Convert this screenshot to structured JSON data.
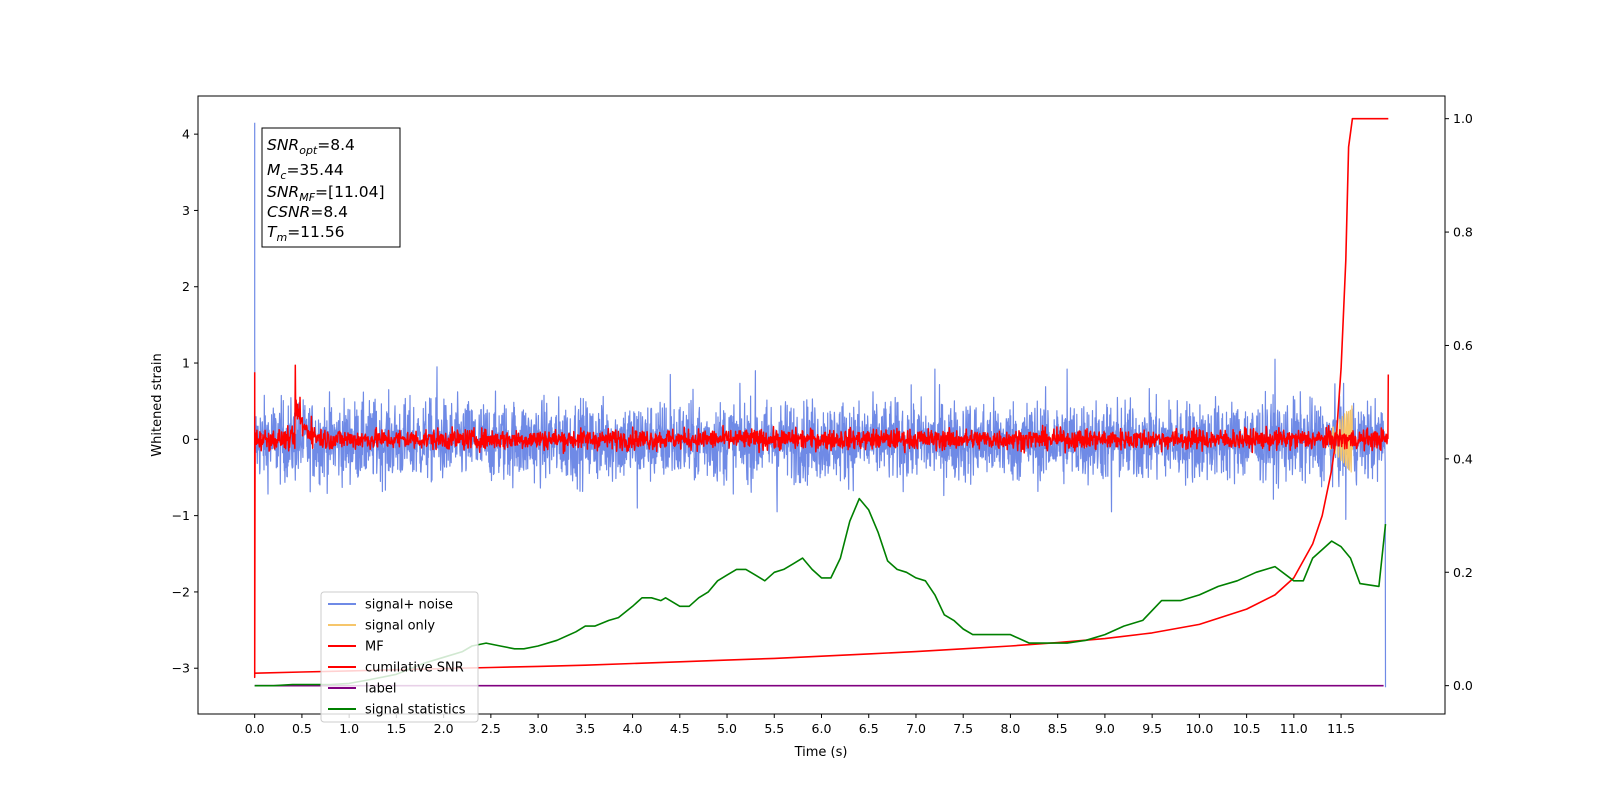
{
  "chart_data": {
    "type": "line",
    "xlabel": "Time (s)",
    "ylabel_left": "Whitened strain",
    "ylabel_right": "",
    "xlim": [
      -0.6,
      12.6
    ],
    "ylim_left": [
      -3.6,
      4.5
    ],
    "ylim_right": [
      -0.05,
      1.04
    ],
    "x_ticks": [
      0.0,
      0.5,
      1.0,
      1.5,
      2.0,
      2.5,
      3.0,
      3.5,
      4.0,
      4.5,
      5.0,
      5.5,
      6.0,
      6.5,
      7.0,
      7.5,
      8.0,
      8.5,
      9.0,
      9.5,
      10.0,
      10.5,
      11.0,
      11.5
    ],
    "x_tick_labels": [
      "0.0",
      "0.5",
      "1.0",
      "1.5",
      "2.0",
      "2.5",
      "3.0",
      "3.5",
      "4.0",
      "4.5",
      "5.0",
      "5.5",
      "6.0",
      "6.5",
      "7.0",
      "7.5",
      "8.0",
      "8.5",
      "9.0",
      "9.5",
      "10.0",
      "10.5",
      "11.0",
      "11.5"
    ],
    "y_left_ticks": [
      -3,
      -2,
      -1,
      0,
      1,
      2,
      3,
      4
    ],
    "y_left_tick_labels": [
      "−3",
      "−2",
      "−1",
      "0",
      "1",
      "2",
      "3",
      "4"
    ],
    "y_right_ticks": [
      0.0,
      0.2,
      0.4,
      0.6,
      0.8,
      1.0
    ],
    "y_right_tick_labels": [
      "0.0",
      "0.2",
      "0.4",
      "0.6",
      "0.8",
      "1.0"
    ],
    "legend_position": "lower-left",
    "grid": false,
    "info_box": {
      "snr_opt_main": "SNR",
      "snr_opt_sub": "opt",
      "snr_opt_val": "=8.4",
      "mc_main": "M",
      "mc_sub": "c",
      "mc_val": "=35.44",
      "snr_mf_main": "SNR",
      "snr_mf_sub": "MF",
      "snr_mf_val": "=[11.04]",
      "csnr_main": "CSNR",
      "csnr_val": "=8.4",
      "tm_main": "T",
      "tm_sub": "m",
      "tm_val": "=11.56"
    },
    "series": [
      {
        "name": "signal+ noise",
        "color": "#6f8ae6",
        "axis": "left",
        "kind": "noise",
        "x_range": [
          0.0,
          11.97
        ],
        "band": [
          -0.5,
          0.45
        ],
        "peaks": [
          [
            0.0,
            4.15
          ],
          [
            0.0,
            1.2
          ],
          [
            1.93,
            0.95
          ],
          [
            4.05,
            -0.9
          ],
          [
            4.4,
            0.85
          ],
          [
            5.3,
            0.9
          ],
          [
            5.53,
            -0.95
          ],
          [
            7.2,
            0.92
          ],
          [
            8.6,
            0.92
          ],
          [
            9.07,
            -0.95
          ],
          [
            10.8,
            1.05
          ],
          [
            11.55,
            -1.05
          ],
          [
            11.97,
            -3.25
          ]
        ]
      },
      {
        "name": "signal only",
        "color": "#f6c66b",
        "axis": "left",
        "kind": "chirp",
        "x_range": [
          11.3,
          11.62
        ],
        "amplitude": 0.45
      },
      {
        "name": "MF",
        "color": "#ff0000",
        "axis": "left",
        "kind": "mf",
        "x_range": [
          0.0,
          12.0
        ],
        "band": [
          -0.12,
          0.12
        ],
        "peaks": [
          [
            0.0,
            0.88
          ],
          [
            0.0,
            -3.12
          ],
          [
            0.43,
            0.97
          ],
          [
            0.48,
            0.55
          ],
          [
            0.6,
            0.3
          ],
          [
            12.0,
            0.85
          ]
        ]
      },
      {
        "name": "cumilative SNR",
        "color": "#ff0000",
        "axis": "right",
        "kind": "line",
        "x": [
          0.0,
          0.5,
          1.0,
          1.5,
          2.0,
          2.5,
          3.0,
          3.5,
          4.0,
          4.5,
          5.0,
          5.5,
          6.0,
          6.5,
          7.0,
          7.5,
          8.0,
          8.5,
          9.0,
          9.5,
          10.0,
          10.5,
          10.8,
          11.0,
          11.2,
          11.3,
          11.4,
          11.45,
          11.5,
          11.55,
          11.58,
          11.62,
          11.7,
          11.8,
          12.0
        ],
        "values": [
          0.022,
          0.024,
          0.026,
          0.028,
          0.03,
          0.032,
          0.034,
          0.036,
          0.039,
          0.042,
          0.045,
          0.048,
          0.052,
          0.056,
          0.06,
          0.065,
          0.07,
          0.076,
          0.083,
          0.093,
          0.108,
          0.135,
          0.16,
          0.19,
          0.25,
          0.3,
          0.38,
          0.44,
          0.56,
          0.75,
          0.95,
          1.0,
          1.0,
          1.0,
          1.0
        ]
      },
      {
        "name": "label",
        "color": "#800080",
        "axis": "right",
        "kind": "line",
        "x": [
          0.0,
          11.95
        ],
        "values": [
          0.0,
          0.0
        ]
      },
      {
        "name": "signal statistics",
        "color": "#008000",
        "axis": "right",
        "kind": "line",
        "x": [
          0.0,
          0.2,
          0.4,
          0.6,
          0.8,
          1.0,
          1.2,
          1.5,
          1.8,
          2.0,
          2.2,
          2.3,
          2.45,
          2.6,
          2.75,
          2.85,
          3.0,
          3.2,
          3.4,
          3.5,
          3.6,
          3.75,
          3.85,
          4.0,
          4.1,
          4.2,
          4.3,
          4.35,
          4.5,
          4.6,
          4.7,
          4.8,
          4.9,
          5.0,
          5.1,
          5.2,
          5.3,
          5.4,
          5.5,
          5.6,
          5.7,
          5.8,
          5.9,
          6.0,
          6.1,
          6.2,
          6.3,
          6.4,
          6.5,
          6.6,
          6.7,
          6.8,
          6.9,
          7.0,
          7.1,
          7.2,
          7.3,
          7.4,
          7.5,
          7.6,
          7.8,
          8.0,
          8.2,
          8.4,
          8.6,
          8.8,
          9.0,
          9.2,
          9.4,
          9.6,
          9.8,
          10.0,
          10.2,
          10.4,
          10.6,
          10.8,
          11.0,
          11.1,
          11.2,
          11.3,
          11.4,
          11.5,
          11.6,
          11.7,
          11.9,
          11.97
        ],
        "values": [
          0.0,
          0.0,
          0.002,
          0.002,
          0.002,
          0.004,
          0.01,
          0.02,
          0.04,
          0.05,
          0.06,
          0.07,
          0.075,
          0.07,
          0.065,
          0.065,
          0.07,
          0.08,
          0.095,
          0.105,
          0.105,
          0.115,
          0.12,
          0.14,
          0.155,
          0.155,
          0.15,
          0.155,
          0.14,
          0.14,
          0.155,
          0.165,
          0.185,
          0.195,
          0.205,
          0.205,
          0.195,
          0.185,
          0.2,
          0.205,
          0.215,
          0.225,
          0.205,
          0.19,
          0.19,
          0.225,
          0.29,
          0.33,
          0.31,
          0.27,
          0.22,
          0.205,
          0.2,
          0.19,
          0.185,
          0.16,
          0.125,
          0.115,
          0.1,
          0.09,
          0.09,
          0.09,
          0.075,
          0.075,
          0.075,
          0.08,
          0.09,
          0.105,
          0.115,
          0.15,
          0.15,
          0.16,
          0.175,
          0.185,
          0.2,
          0.21,
          0.185,
          0.185,
          0.225,
          0.24,
          0.255,
          0.245,
          0.225,
          0.18,
          0.175,
          0.285
        ]
      }
    ]
  }
}
